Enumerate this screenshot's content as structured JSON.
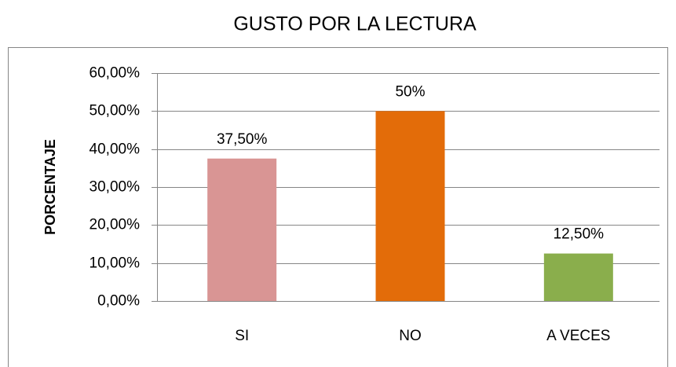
{
  "chart_data": {
    "type": "bar",
    "title": "GUSTO POR LA LECTURA",
    "y_label": "PORCENTAJE",
    "categories": [
      "SI",
      "NO",
      "A VECES"
    ],
    "values": [
      37.5,
      50,
      12.5
    ],
    "value_labels": [
      "37,50%",
      "50%",
      "12,50%"
    ],
    "colors": [
      "#d99594",
      "#e36c09",
      "#8aae4c"
    ],
    "ylim": [
      0,
      60
    ],
    "yticks": [
      {
        "value": 0,
        "label": "0,00%"
      },
      {
        "value": 10,
        "label": "10,00%"
      },
      {
        "value": 20,
        "label": "20,00%"
      },
      {
        "value": 30,
        "label": "30,00%"
      },
      {
        "value": 40,
        "label": "40,00%"
      },
      {
        "value": 50,
        "label": "50,00%"
      },
      {
        "value": 60,
        "label": "60,00%"
      }
    ],
    "grid": true
  }
}
